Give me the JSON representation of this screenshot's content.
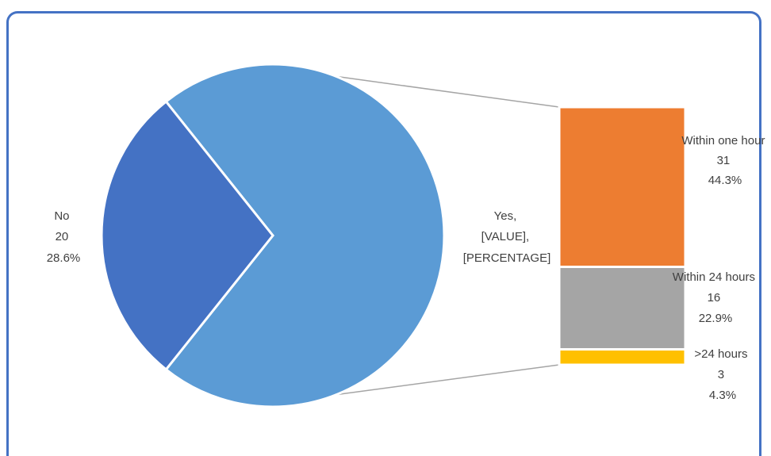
{
  "chart_data": {
    "type": "bar-of-pie",
    "title": "",
    "pie": {
      "slices": [
        {
          "label": "No",
          "value": 20,
          "percent": "28.6%",
          "color": "#4472C4"
        },
        {
          "label": "Yes,",
          "value_text": "[VALUE],",
          "percent_text": "[PERCENTAGE]",
          "value": 50,
          "color": "#5B9BD5"
        }
      ]
    },
    "bar": {
      "segments": [
        {
          "label": "Within one hour",
          "value": 31,
          "percent": "44.3%",
          "color": "#ED7D31"
        },
        {
          "label": "Within 24 hours",
          "value": 16,
          "percent": "22.9%",
          "color": "#A5A5A5"
        },
        {
          "label": ">24 hours",
          "value": 3,
          "percent": "4.3%",
          "color": "#FFC000"
        }
      ]
    },
    "connector_color": "#A5A5A5",
    "border_color": "#4472C4"
  }
}
